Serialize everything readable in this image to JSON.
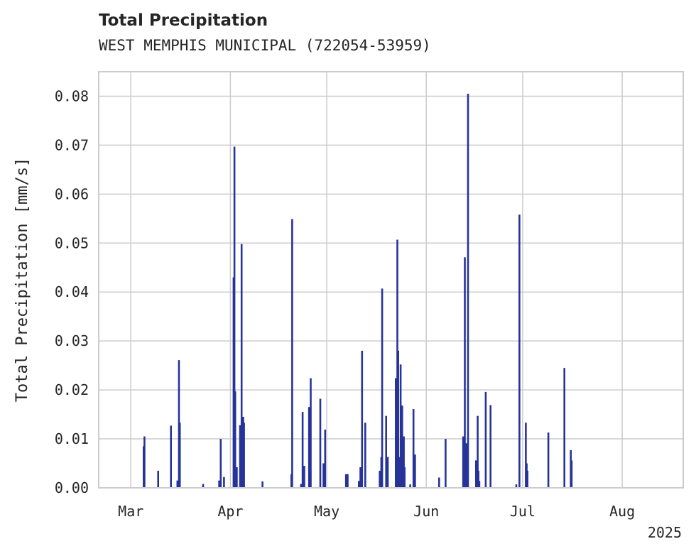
{
  "chart_data": {
    "type": "bar",
    "title": "Total Precipitation",
    "subtitle": "WEST MEMPHIS MUNICIPAL (722054-53959)",
    "ylabel": "Total Precipitation [mm/s]",
    "xlabel": "",
    "year_label": "2025",
    "xlim": [
      "2025-02-19",
      "2025-08-20"
    ],
    "ylim": [
      0,
      0.085
    ],
    "grid": true,
    "bar_color": "#26349a",
    "grid_color": "#cccccc",
    "x_ticks": [
      {
        "date": "2025-03-01",
        "label": "Mar"
      },
      {
        "date": "2025-04-01",
        "label": "Apr"
      },
      {
        "date": "2025-05-01",
        "label": "May"
      },
      {
        "date": "2025-06-01",
        "label": "Jun"
      },
      {
        "date": "2025-07-01",
        "label": "Jul"
      },
      {
        "date": "2025-08-01",
        "label": "Aug"
      }
    ],
    "y_ticks": [
      {
        "value": 0,
        "label": "0.00"
      },
      {
        "value": 0.01,
        "label": "0.01"
      },
      {
        "value": 0.02,
        "label": "0.02"
      },
      {
        "value": 0.03,
        "label": "0.03"
      },
      {
        "value": 0.04,
        "label": "0.04"
      },
      {
        "value": 0.05,
        "label": "0.05"
      },
      {
        "value": 0.06,
        "label": "0.06"
      },
      {
        "value": 0.07,
        "label": "0.07"
      },
      {
        "value": 0.08,
        "label": "0.08"
      }
    ],
    "x": [
      "2025-03-05T00:00",
      "2025-03-05T06:00",
      "2025-03-09T12:00",
      "2025-03-13T12:00",
      "2025-03-15T12:00",
      "2025-03-16T00:00",
      "2025-03-16T06:00",
      "2025-03-23T12:00",
      "2025-03-28T12:00",
      "2025-03-29T00:00",
      "2025-03-30T00:00",
      "2025-04-02T00:00",
      "2025-04-02T06:00",
      "2025-04-02T12:00",
      "2025-04-03T00:00",
      "2025-04-04T00:00",
      "2025-04-04T12:00",
      "2025-04-05T00:00",
      "2025-04-05T06:00",
      "2025-04-11T00:00",
      "2025-04-20T00:00",
      "2025-04-20T06:00",
      "2025-04-23T00:00",
      "2025-04-23T12:00",
      "2025-04-24T00:00",
      "2025-04-25T12:00",
      "2025-04-26T00:00",
      "2025-04-29T00:00",
      "2025-04-30T00:00",
      "2025-04-30T12:00",
      "2025-05-07T00:00",
      "2025-05-07T12:00",
      "2025-05-11T00:00",
      "2025-05-11T12:00",
      "2025-05-12T00:00",
      "2025-05-13T00:00",
      "2025-05-17T12:00",
      "2025-05-18T00:00",
      "2025-05-18T06:00",
      "2025-05-19T12:00",
      "2025-05-20T00:00",
      "2025-05-22T12:00",
      "2025-05-23T00:00",
      "2025-05-23T06:00",
      "2025-05-23T12:00",
      "2025-05-24T00:00",
      "2025-05-24T12:00",
      "2025-05-25T00:00",
      "2025-05-25T06:00",
      "2025-05-27T00:00",
      "2025-05-28T00:00",
      "2025-05-28T12:00",
      "2025-06-05T00:00",
      "2025-06-07T00:00",
      "2025-06-12T12:00",
      "2025-06-13T00:00",
      "2025-06-13T12:00",
      "2025-06-14T00:00",
      "2025-06-16T12:00",
      "2025-06-17T00:00",
      "2025-06-17T06:00",
      "2025-06-17T12:00",
      "2025-06-19T12:00",
      "2025-06-21T00:00",
      "2025-06-29T00:00",
      "2025-06-30T00:00",
      "2025-07-02T00:00",
      "2025-07-02T06:00",
      "2025-07-02T12:00",
      "2025-07-09T00:00",
      "2025-07-14T00:00",
      "2025-07-16T00:00",
      "2025-07-16T06:00"
    ],
    "values": [
      0.0085,
      0.0105,
      0.0035,
      0.0127,
      0.0015,
      0.0261,
      0.0133,
      0.0008,
      0.0015,
      0.01,
      0.0022,
      0.043,
      0.0697,
      0.0197,
      0.0042,
      0.0128,
      0.0498,
      0.0145,
      0.0133,
      0.0013,
      0.0028,
      0.0549,
      0.0008,
      0.0155,
      0.0045,
      0.0165,
      0.0224,
      0.0182,
      0.005,
      0.0119,
      0.0028,
      0.0028,
      0.0014,
      0.0042,
      0.028,
      0.0133,
      0.0035,
      0.0063,
      0.0407,
      0.0147,
      0.0063,
      0.0224,
      0.0507,
      0.028,
      0.0063,
      0.0252,
      0.0168,
      0.0105,
      0.0042,
      0.0007,
      0.0161,
      0.0068,
      0.0021,
      0.01,
      0.0105,
      0.0471,
      0.0091,
      0.0805,
      0.0056,
      0.0147,
      0.0035,
      0.0014,
      0.0196,
      0.0169,
      0.0007,
      0.0558,
      0.0133,
      0.005,
      0.0035,
      0.0113,
      0.0245,
      0.0077,
      0.0056
    ]
  }
}
